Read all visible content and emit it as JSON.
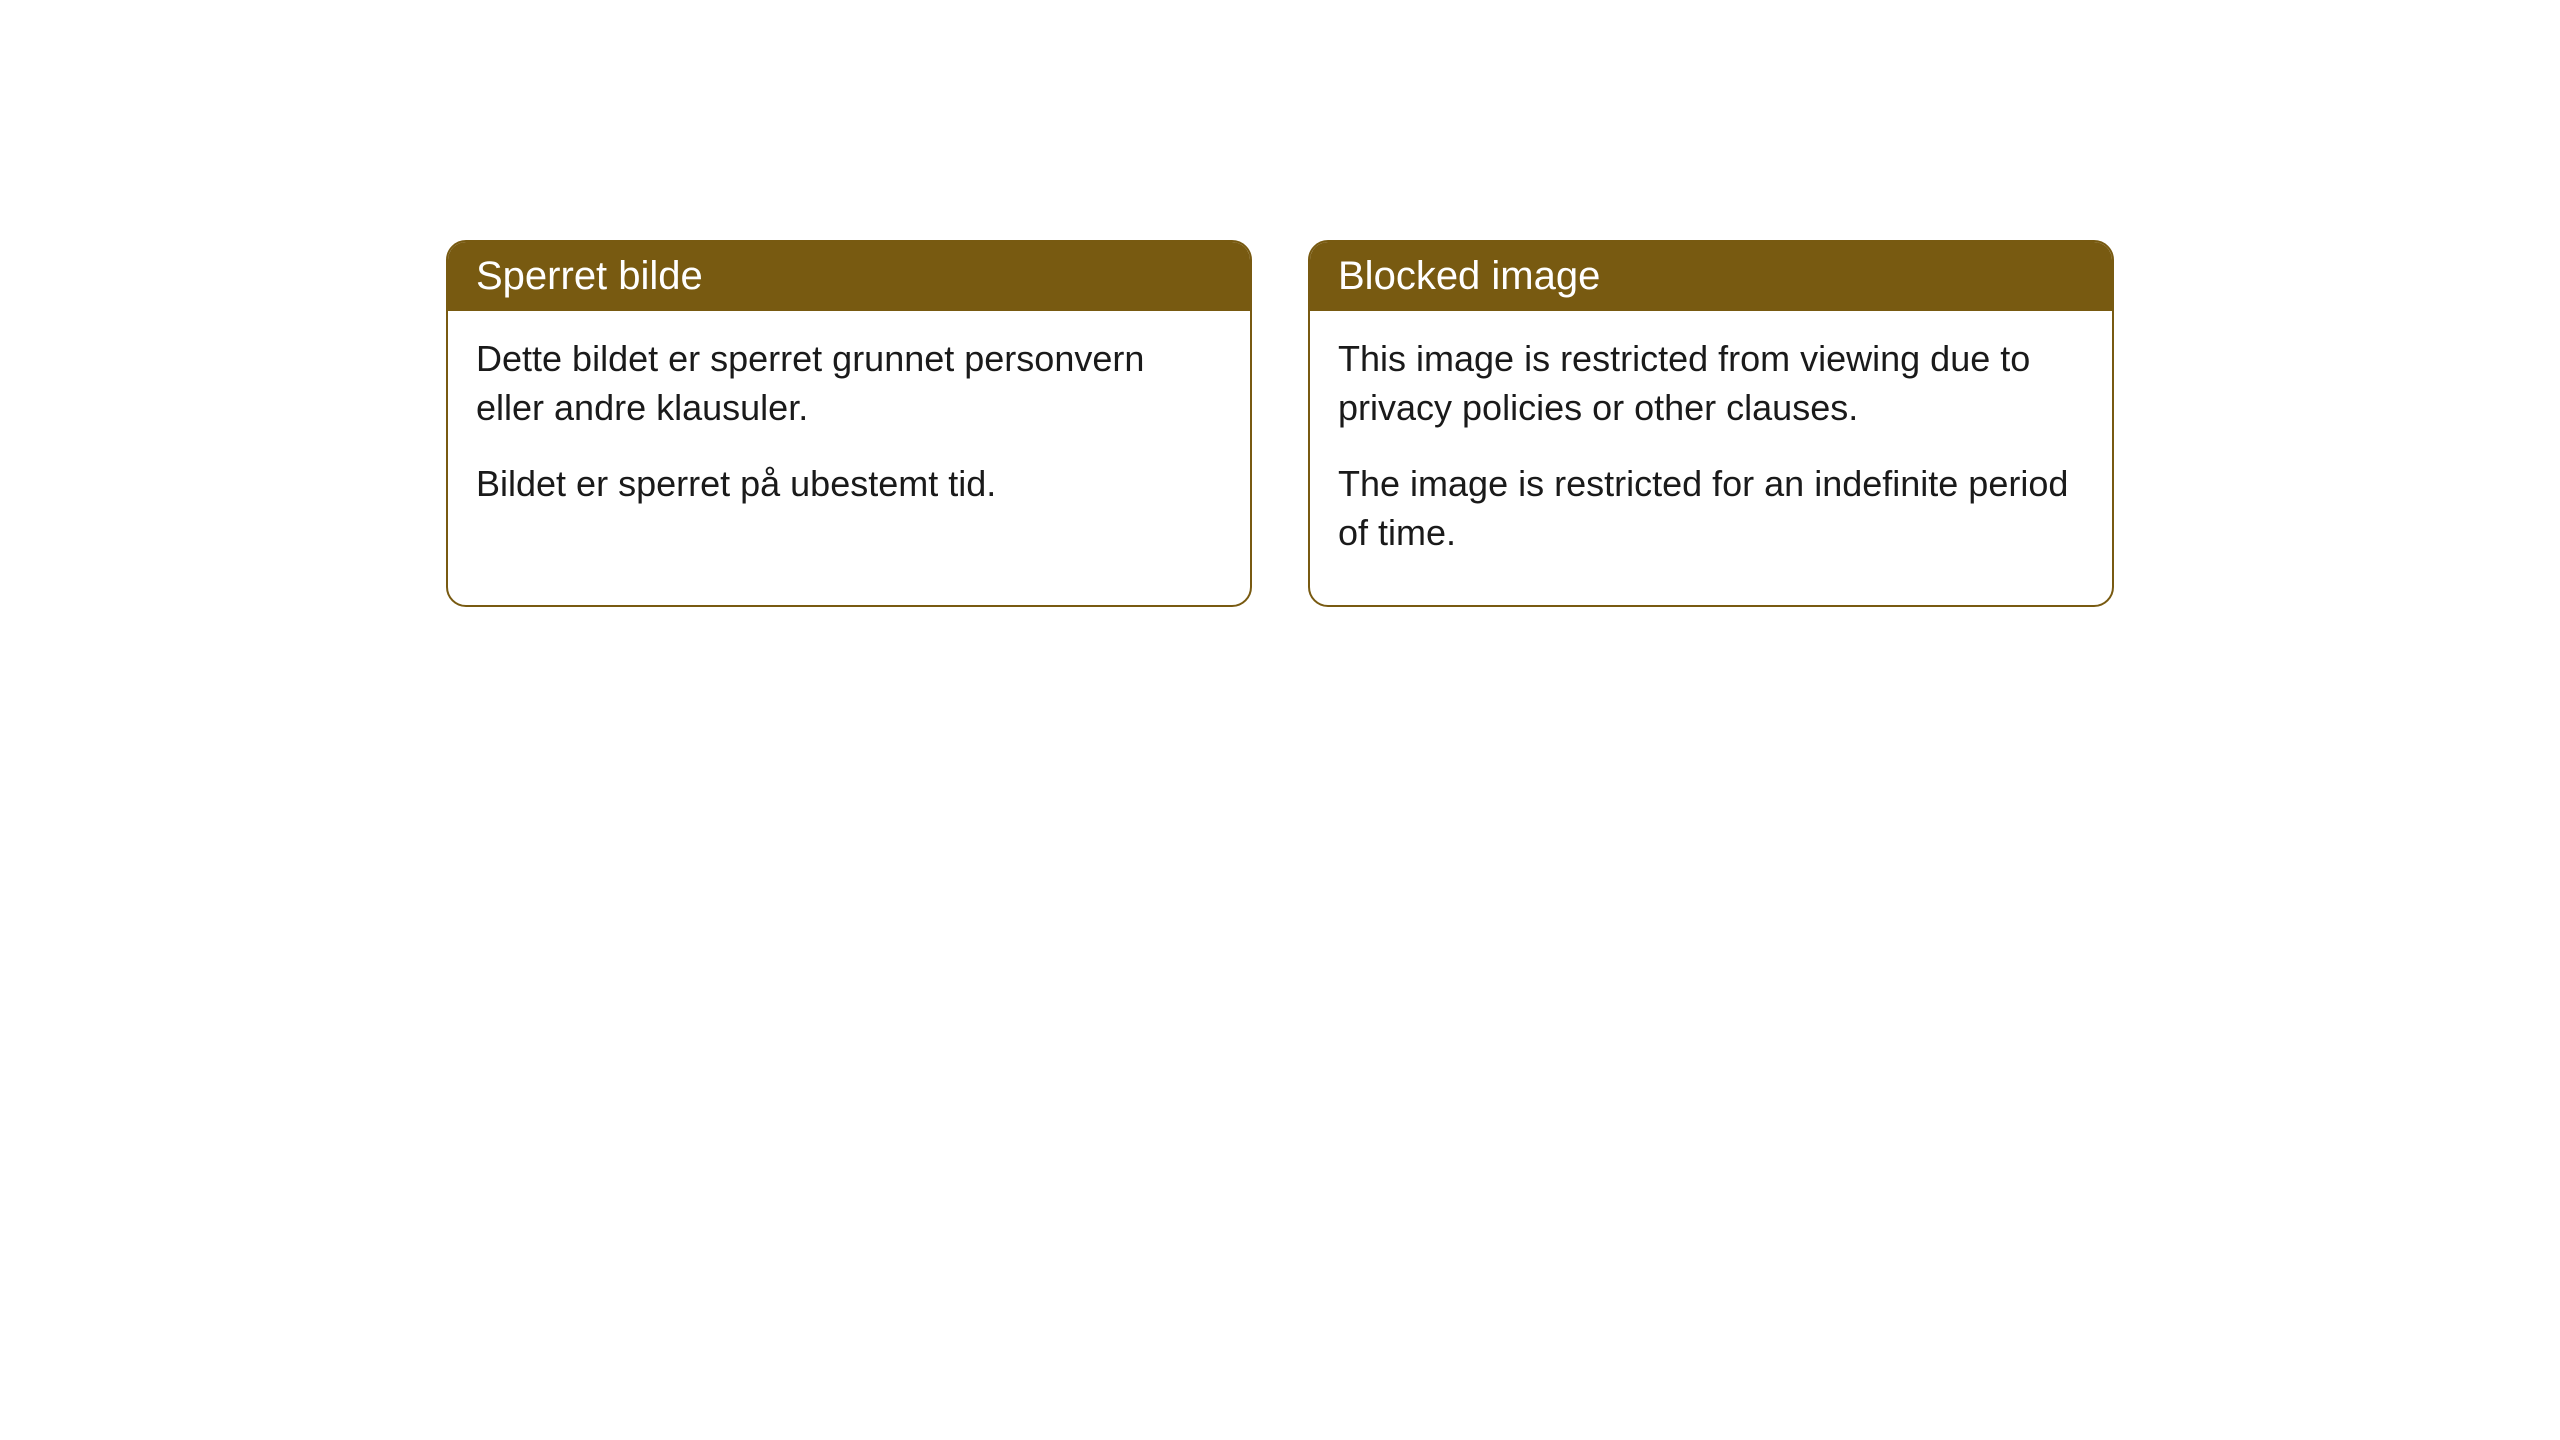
{
  "cards": [
    {
      "title": "Sperret bilde",
      "paragraph1": "Dette bildet er sperret grunnet personvern eller andre klausuler.",
      "paragraph2": "Bildet er sperret på ubestemt tid."
    },
    {
      "title": "Blocked image",
      "paragraph1": "This image is restricted from viewing due to privacy policies or other clauses.",
      "paragraph2": "The image is restricted for an indefinite period of time."
    }
  ],
  "styling": {
    "header_background_color": "#785a11",
    "header_text_color": "#ffffff",
    "border_color": "#785a11",
    "body_text_color": "#1a1a1a",
    "card_background_color": "#ffffff",
    "page_background_color": "#ffffff",
    "border_radius": 20,
    "header_font_size": 40,
    "body_font_size": 36
  }
}
